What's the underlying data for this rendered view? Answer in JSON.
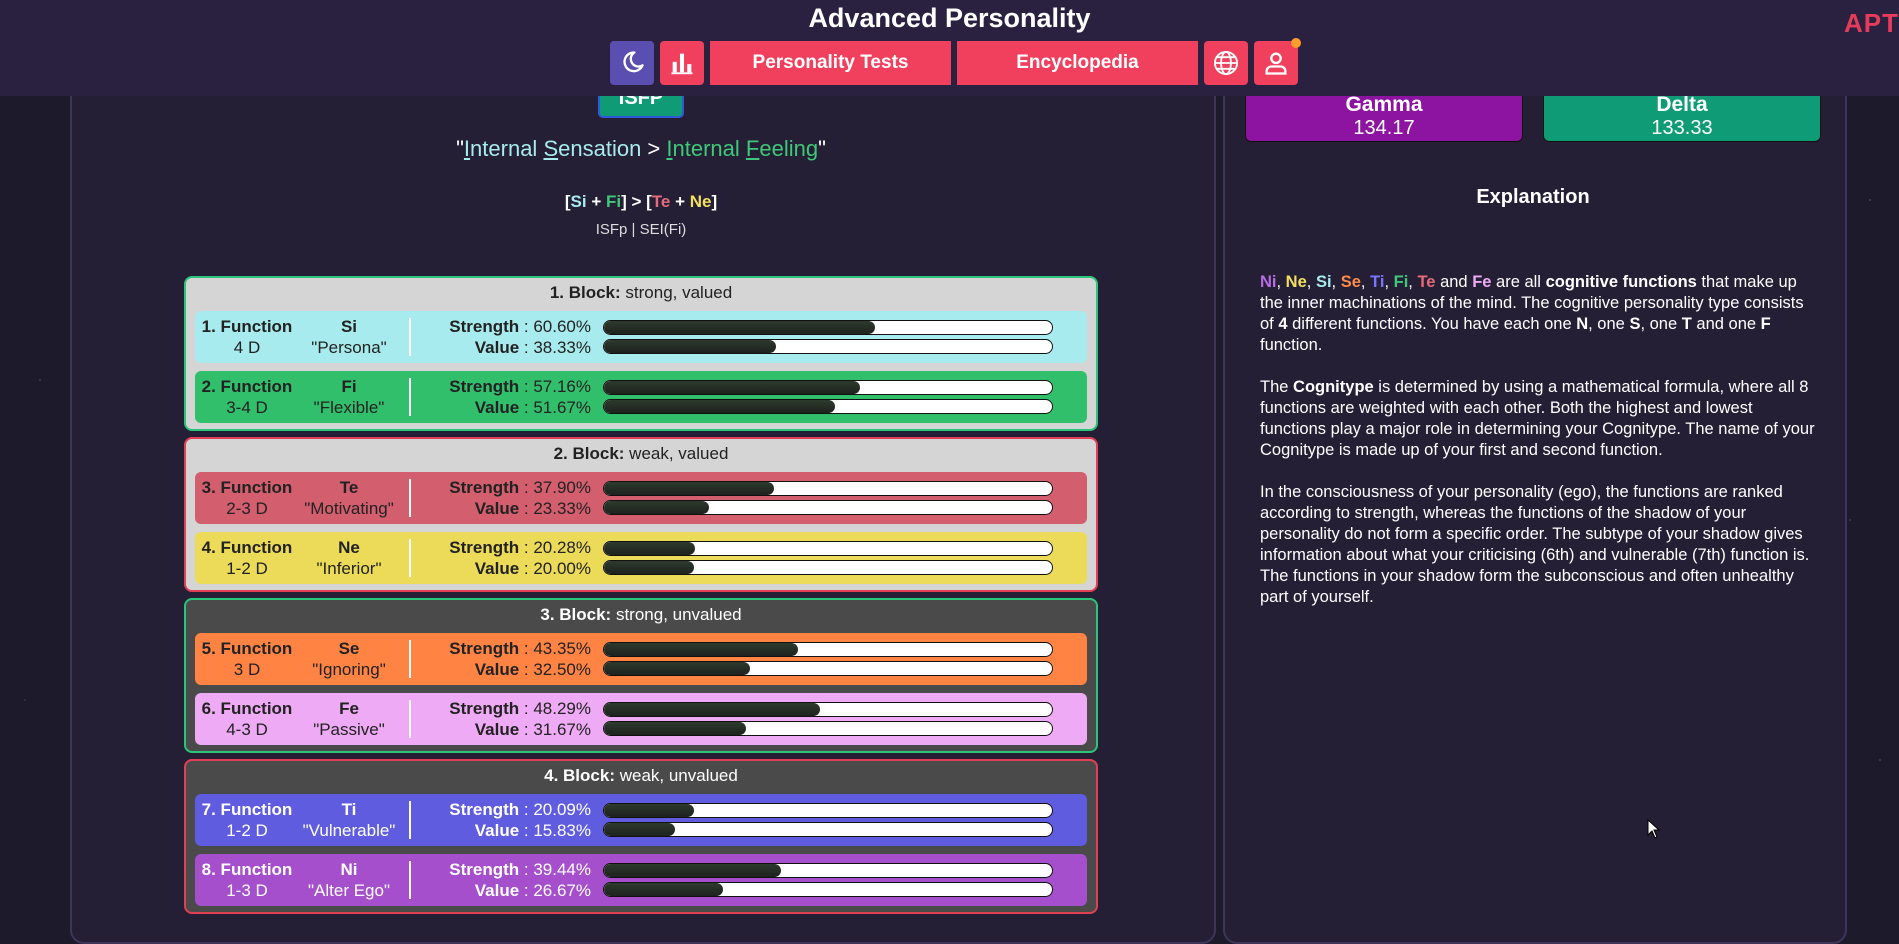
{
  "header": {
    "title": "Advanced Personality",
    "logo_text": "APT",
    "nav": {
      "tests_label": "Personality Tests",
      "ency_label": "Encyclopedia"
    },
    "icons": [
      "moon-icon",
      "bar-chart-icon",
      "globe-icon",
      "user-icon"
    ]
  },
  "type": {
    "code": "ISfP",
    "badge": "ISFP",
    "name_parts": {
      "open": "\"",
      "w1a": "I",
      "w1b": "nternal ",
      "w1c": "S",
      "w1d": "ensation",
      "gt": " > ",
      "w2a": "I",
      "w2b": "nternal ",
      "w2c": "F",
      "w2d": "eeling",
      "close": "\""
    },
    "formula": {
      "lb1": "[",
      "f1": "Si",
      "plus1": " + ",
      "f2": "Fi",
      "rb1": "] > [",
      "f3": "Te",
      "plus2": " + ",
      "f4": "Ne",
      "rb2": "]"
    },
    "subtitle": "ISFp | SEI(Fi)"
  },
  "blocks": [
    {
      "title": "1. Block:",
      "desc": " strong, valued",
      "functions": [
        {
          "label": "1. Function",
          "dim": "4 D",
          "fn": "Si",
          "role": "\"Persona\"",
          "strength_label": "Strength",
          "strength": ": 60.60%",
          "value_label": "Value",
          "value": ": 38.33%",
          "s": 0.606,
          "v": 0.3833
        },
        {
          "label": "2. Function",
          "dim": "3-4 D",
          "fn": "Fi",
          "role": "\"Flexible\"",
          "strength_label": "Strength",
          "strength": ": 57.16%",
          "value_label": "Value",
          "value": ": 51.67%",
          "s": 0.5716,
          "v": 0.5167
        }
      ]
    },
    {
      "title": "2. Block:",
      "desc": " weak, valued",
      "functions": [
        {
          "label": "3. Function",
          "dim": "2-3 D",
          "fn": "Te",
          "role": "\"Motivating\"",
          "strength_label": "Strength",
          "strength": ": 37.90%",
          "value_label": "Value",
          "value": ": 23.33%",
          "s": 0.379,
          "v": 0.2333
        },
        {
          "label": "4. Function",
          "dim": "1-2 D",
          "fn": "Ne",
          "role": "\"Inferior\"",
          "strength_label": "Strength",
          "strength": ": 20.28%",
          "value_label": "Value",
          "value": ": 20.00%",
          "s": 0.2028,
          "v": 0.2
        }
      ]
    },
    {
      "title": "3. Block:",
      "desc": " strong, unvalued",
      "functions": [
        {
          "label": "5. Function",
          "dim": "3 D",
          "fn": "Se",
          "role": "\"Ignoring\"",
          "strength_label": "Strength",
          "strength": ": 43.35%",
          "value_label": "Value",
          "value": ": 32.50%",
          "s": 0.4335,
          "v": 0.325
        },
        {
          "label": "6. Function",
          "dim": "4-3 D",
          "fn": "Fe",
          "role": "\"Passive\"",
          "strength_label": "Strength",
          "strength": ": 48.29%",
          "value_label": "Value",
          "value": ": 31.67%",
          "s": 0.4829,
          "v": 0.3167
        }
      ]
    },
    {
      "title": "4. Block:",
      "desc": " weak, unvalued",
      "functions": [
        {
          "label": "7. Function",
          "dim": "1-2 D",
          "fn": "Ti",
          "role": "\"Vulnerable\"",
          "strength_label": "Strength",
          "strength": ": 20.09%",
          "value_label": "Value",
          "value": ": 15.83%",
          "s": 0.2009,
          "v": 0.1583
        },
        {
          "label": "8. Function",
          "dim": "1-3 D",
          "fn": "Ni",
          "role": "\"Alter Ego\"",
          "strength_label": "Strength",
          "strength": ": 39.44%",
          "value_label": "Value",
          "value": ": 26.67%",
          "s": 0.3944,
          "v": 0.2667
        }
      ]
    }
  ],
  "quadras": [
    {
      "name": "Gamma",
      "value": "134.17",
      "color": "#8d14a0"
    },
    {
      "name": "Delta",
      "value": "133.33",
      "color": "#0f9b75"
    }
  ],
  "explanation": {
    "title": "Explanation",
    "p1": {
      "ni": "Ni",
      "c1": ", ",
      "ne": "Ne",
      "c2": ", ",
      "si": "Si",
      "c3": ", ",
      "se": "Se",
      "c4": ", ",
      "ti": "Ti",
      "c5": ", ",
      "fi": "Fi",
      "c6": ", ",
      "te": "Te",
      "and": " and ",
      "fe": "Fe",
      "t1": " are all ",
      "b1": "cognitive functions",
      "t2": " that make up the inner machinations of the mind. The cognitive personality type consists of ",
      "b2": "4",
      "t3": " different functions. You have each one ",
      "b3": "N",
      "t4": ", one ",
      "b4": "S",
      "t5": ", one ",
      "b5": "T",
      "t6": " and one ",
      "b6": "F",
      "t7": " function."
    },
    "p2": {
      "t1": "The ",
      "b1": "Cognitype",
      "t2": " is determined by using a mathematical formula, where all 8 functions are weighted with each other. Both the highest and lowest functions play a major role in determining your Cognitype. The name of your Cognitype is made up of your first and second function."
    },
    "p3": "In the consciousness of your personality (ego), the functions are ranked according to strength, whereas the functions of the shadow of your personality do not form a specific order. The subtype of your shadow gives information about what your criticising (6th) and vulnerable (7th) function is. The functions in your shadow form the subconscious and often unhealthy part of yourself."
  }
}
